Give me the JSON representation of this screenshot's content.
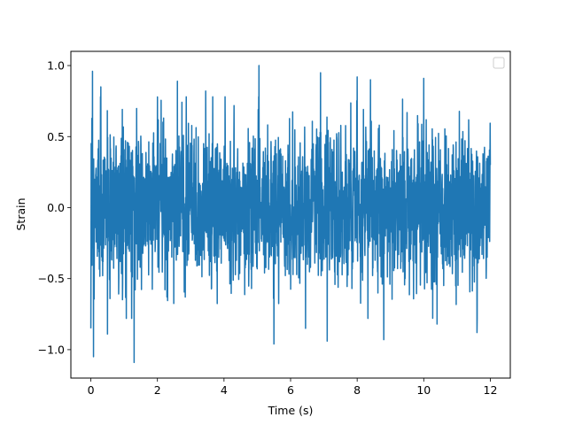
{
  "chart_data": {
    "type": "line",
    "title": "",
    "xlabel": "Time (s)",
    "ylabel": "Strain",
    "xlim": [
      -0.6,
      12.6
    ],
    "ylim": [
      -1.2,
      1.1
    ],
    "x_ticks": [
      0,
      2,
      4,
      6,
      8,
      10,
      12
    ],
    "x_tick_labels": [
      "0",
      "2",
      "4",
      "6",
      "8",
      "10",
      "12"
    ],
    "y_ticks": [
      -1.0,
      -0.5,
      0.0,
      0.5,
      1.0
    ],
    "y_tick_labels": [
      "−1.0",
      "−0.5",
      "0.0",
      "0.5",
      "1.0"
    ],
    "grid": false,
    "legend": {
      "placement": "top-right",
      "entries": []
    },
    "series": [
      {
        "color": "#1f77b4",
        "x_range": [
          0,
          12
        ],
        "y_range": [
          -1.09,
          1.0
        ],
        "signal": "dense noise, amplitude mostly within ±0.6",
        "x": [
          0.0,
          0.05,
          0.08,
          0.3,
          0.5,
          1.3,
          2.6,
          3.45,
          5.05,
          5.5,
          6.45,
          6.9,
          7.1,
          8.0,
          8.4,
          8.8,
          10.0,
          10.4,
          11.6,
          12.0
        ],
        "y": [
          -0.85,
          0.96,
          -1.05,
          0.85,
          -0.89,
          -1.09,
          0.89,
          0.82,
          1.0,
          -0.96,
          -0.85,
          0.95,
          -0.94,
          0.92,
          0.9,
          -0.93,
          0.91,
          -0.82,
          -0.88,
          0.3
        ]
      }
    ]
  }
}
